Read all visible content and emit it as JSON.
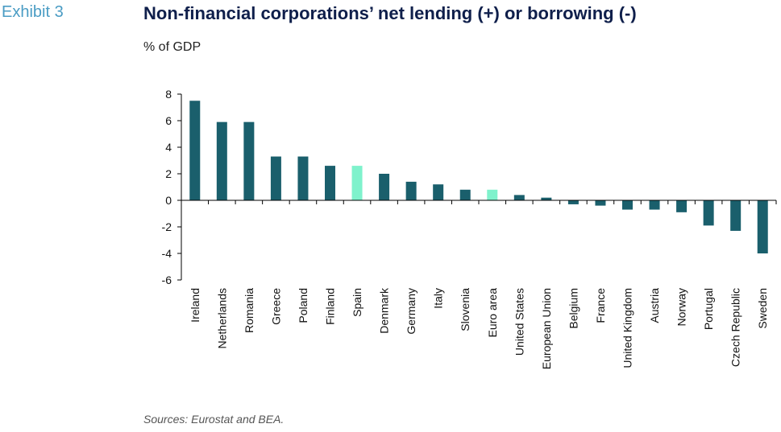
{
  "header": {
    "exhibit": "Exhibit 3",
    "title": "Non-financial corporations’ net lending (+) or borrowing (-)",
    "subtitle": "% of GDP"
  },
  "footer": {
    "source": "Sources: Eurostat and BEA."
  },
  "chart_data": {
    "type": "bar",
    "title": "Non-financial corporations’ net lending (+) or borrowing (-)",
    "ylabel": "% of GDP",
    "ylim": [
      -6,
      8
    ],
    "yticks": [
      8,
      6,
      4,
      2,
      0,
      -2,
      -4,
      -6
    ],
    "categories": [
      "Ireland",
      "Netherlands",
      "Romania",
      "Greece",
      "Poland",
      "Finland",
      "Spain",
      "Denmark",
      "Germany",
      "Italy",
      "Slovenia",
      "Euro area",
      "United States",
      "European Union",
      "Belgium",
      "France",
      "United Kingdom",
      "Austria",
      "Norway",
      "Portugal",
      "Czech Republic",
      "Sweden"
    ],
    "values": [
      7.5,
      5.9,
      5.9,
      3.3,
      3.3,
      2.6,
      2.6,
      2.0,
      1.4,
      1.2,
      0.8,
      0.8,
      0.4,
      0.2,
      -0.3,
      -0.4,
      -0.7,
      -0.7,
      -0.9,
      -1.9,
      -2.3,
      -4.0
    ],
    "highlight": [
      "Spain",
      "Euro area"
    ],
    "colors": {
      "bar": "#1a5f6c",
      "highlight": "#7ff2cc",
      "axis": "#000000"
    },
    "grid": false,
    "legend": "none"
  }
}
